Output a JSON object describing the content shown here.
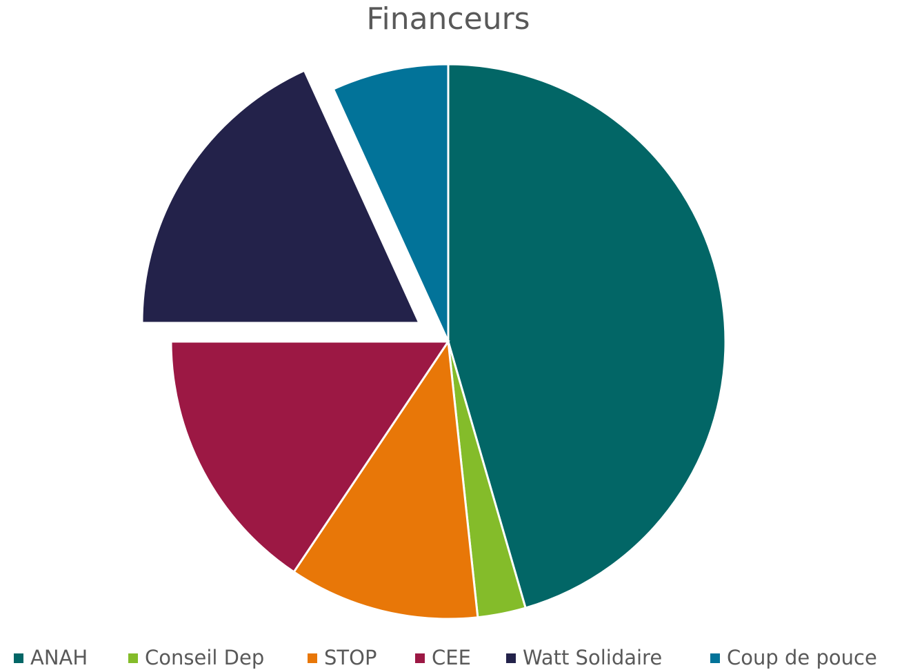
{
  "chart_data": {
    "type": "pie",
    "title": "Financeurs",
    "categories": [
      "ANAH",
      "Conseil Dep",
      "STOP",
      "CEE",
      "Watt Solidaire",
      "Coup de pouce"
    ],
    "values": [
      45.5,
      2.8,
      11.1,
      15.6,
      18.2,
      6.8
    ],
    "colors": [
      "#026666",
      "#84bc2a",
      "#e87708",
      "#9c1844",
      "#23224a",
      "#027399"
    ],
    "explode": [
      false,
      false,
      false,
      false,
      true,
      false
    ],
    "legend": "bottom"
  }
}
